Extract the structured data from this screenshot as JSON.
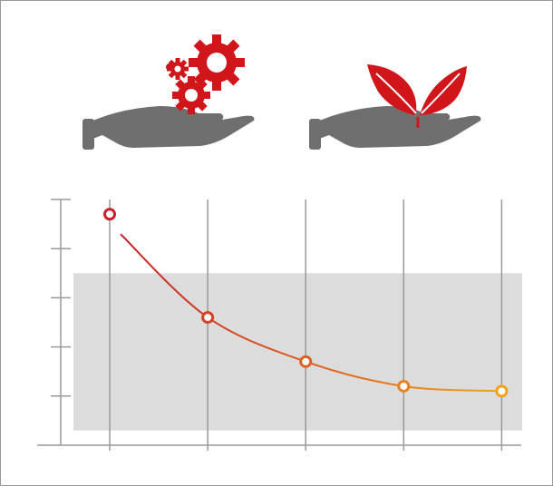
{
  "colors": {
    "hand": "#6f6f6f",
    "accent_red": "#d0161b",
    "curve_start": "#c8202a",
    "curve_end": "#f3a218",
    "band": "#dcdcdc",
    "axis": "#9a9a9a"
  },
  "icons": [
    {
      "name": "hand-with-gears-icon"
    },
    {
      "name": "hand-with-leaves-icon"
    }
  ],
  "chart_data": {
    "type": "line",
    "title": "",
    "xlabel": "",
    "ylabel": "",
    "x": [
      1,
      2,
      3,
      4,
      5
    ],
    "series": [
      {
        "values": [
          4.7,
          2.6,
          1.7,
          1.2,
          1.1
        ]
      }
    ],
    "xlim": [
      0.5,
      5.2
    ],
    "ylim": [
      0,
      5
    ],
    "band": [
      0.3,
      3.5
    ],
    "x_tick_labels": [],
    "y_tick_labels": [],
    "grid": "vertical"
  }
}
